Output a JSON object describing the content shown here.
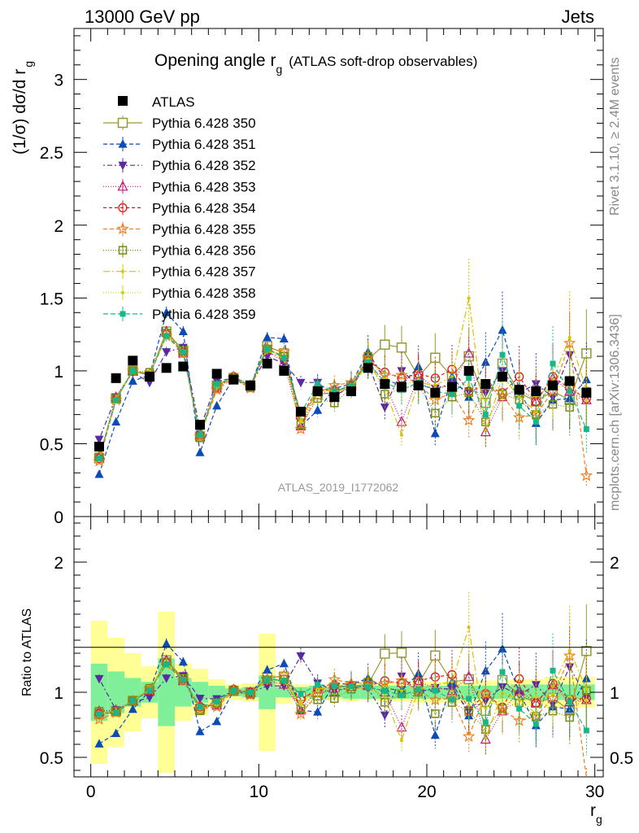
{
  "header": {
    "left": "13000 GeV pp",
    "right": "Jets",
    "side_top": "Rivet 3.1.10, ≥ 2.4M events",
    "side_bottom": "mcplots.cern.ch [arXiv:1306.3436]",
    "watermark": "ATLAS_2019_I1772062"
  },
  "chart_data": [
    {
      "type": "scatter",
      "panel": "main",
      "title_main": "Opening angle r",
      "title_sub": "g",
      "title_rest": "(ATLAS soft-drop observables)",
      "ylabel": "(1/σ) dσ/d r",
      "ylabel_sub": "g",
      "xlim": [
        -1,
        30.5
      ],
      "ylim": [
        0,
        3.35
      ],
      "yticks": [
        0,
        0.5,
        1,
        1.5,
        2,
        2.5,
        3
      ],
      "ytick_labels": [
        "0",
        "0.5",
        "1",
        "1.5",
        "2",
        "2.5",
        "3"
      ],
      "x": [
        0.5,
        1.5,
        2.5,
        3.5,
        4.5,
        5.5,
        6.5,
        7.5,
        8.5,
        9.5,
        10.5,
        11.5,
        12.5,
        13.5,
        14.5,
        15.5,
        16.5,
        17.5,
        18.5,
        19.5,
        20.5,
        21.5,
        22.5,
        23.5,
        24.5,
        25.5,
        26.5,
        27.5,
        28.5,
        29.5
      ],
      "data": {
        "name": "ATLAS",
        "values": [
          0.48,
          0.95,
          1.07,
          0.96,
          1.02,
          1.03,
          0.63,
          0.98,
          0.94,
          0.9,
          1.05,
          1.0,
          0.72,
          0.86,
          0.82,
          0.86,
          1.02,
          0.91,
          0.89,
          0.9,
          0.85,
          0.89,
          1.0,
          0.91,
          0.96,
          0.87,
          0.86,
          0.9,
          0.93,
          0.85
        ]
      },
      "series": [
        {
          "name": "Pythia 6.428 350",
          "color": "#999933",
          "marker": "square-open",
          "dash": "",
          "values": [
            0.4,
            0.81,
            1.0,
            0.97,
            1.27,
            1.14,
            0.55,
            0.9,
            0.95,
            0.9,
            1.17,
            1.12,
            0.7,
            0.84,
            0.85,
            0.9,
            1.08,
            1.18,
            1.16,
            0.96,
            1.09,
            0.96,
            1.1,
            0.78,
            1.05,
            0.85,
            0.79,
            0.86,
            0.8,
            1.12
          ]
        },
        {
          "name": "Pythia 6.428 351",
          "color": "#0b4bb5",
          "marker": "triangle-up",
          "dash": "5,3",
          "values": [
            0.29,
            0.65,
            0.93,
            0.97,
            1.4,
            1.27,
            0.44,
            0.76,
            0.95,
            0.88,
            1.23,
            1.22,
            0.62,
            0.73,
            0.88,
            0.91,
            1.13,
            0.94,
            0.9,
            1.03,
            0.57,
            0.96,
            0.82,
            1.06,
            1.28,
            0.87,
            0.64,
            0.8,
            0.81,
            0.94
          ]
        },
        {
          "name": "Pythia 6.428 352",
          "color": "#5a2aa0",
          "marker": "triangle-down",
          "dash": "2,3,6,3",
          "values": [
            0.53,
            0.82,
            0.99,
            0.92,
            1.13,
            1.16,
            0.6,
            0.93,
            0.95,
            0.9,
            1.1,
            1.05,
            0.92,
            0.92,
            0.83,
            0.89,
            1.05,
            0.75,
            1.0,
            0.9,
            0.88,
            0.91,
            0.86,
            0.85,
            1.0,
            0.85,
            0.91,
            0.82,
            1.11,
            0.82
          ]
        },
        {
          "name": "Pythia 6.428 353",
          "color": "#c0187a",
          "marker": "triangle-open",
          "dash": "1,2",
          "values": [
            0.41,
            0.82,
            1.0,
            0.97,
            1.27,
            1.12,
            0.56,
            0.88,
            0.96,
            0.9,
            1.14,
            1.06,
            0.62,
            0.88,
            0.82,
            0.9,
            1.07,
            0.91,
            0.65,
            0.97,
            0.88,
            0.9,
            1.12,
            0.58,
            0.82,
            0.88,
            0.79,
            0.95,
            0.86,
            0.8
          ]
        },
        {
          "name": "Pythia 6.428 354",
          "color": "#dd1a1a",
          "marker": "circle-open",
          "dash": "4,3",
          "values": [
            0.4,
            0.81,
            1.0,
            0.97,
            1.25,
            1.13,
            0.56,
            0.89,
            0.96,
            0.9,
            1.15,
            1.1,
            0.68,
            0.88,
            0.86,
            0.9,
            1.07,
            0.99,
            0.95,
            0.98,
            0.95,
            1.01,
            0.86,
            0.9,
            0.85,
            0.96,
            0.79,
            0.96,
            0.88,
            0.81
          ]
        },
        {
          "name": "Pythia 6.428 355",
          "color": "#f08020",
          "marker": "star-open",
          "dash": "5,3",
          "values": [
            0.38,
            0.8,
            1.0,
            0.98,
            1.24,
            1.12,
            0.55,
            0.87,
            0.95,
            0.88,
            1.16,
            1.13,
            0.6,
            0.85,
            0.9,
            0.92,
            1.09,
            0.97,
            0.97,
            0.91,
            0.8,
            0.85,
            0.66,
            0.9,
            0.83,
            0.68,
            0.7,
            0.86,
            1.19,
            0.28
          ]
        },
        {
          "name": "Pythia 6.428 356",
          "color": "#7d8a10",
          "marker": "square-open-small",
          "dash": "1,2",
          "values": [
            0.41,
            0.81,
            1.0,
            0.99,
            1.26,
            1.14,
            0.54,
            0.9,
            0.95,
            0.89,
            1.15,
            1.1,
            0.63,
            0.81,
            0.78,
            0.88,
            1.1,
            0.84,
            0.88,
            0.9,
            0.71,
            0.82,
            0.85,
            0.65,
            0.84,
            0.8,
            0.7,
            0.77,
            0.75,
            0.86
          ]
        },
        {
          "name": "Pythia 6.428 357",
          "color": "#d8c400",
          "marker": "dot-small",
          "dash": "8,3,2,3",
          "values": [
            0.4,
            0.81,
            1.0,
            0.98,
            1.25,
            1.13,
            0.56,
            0.9,
            0.95,
            0.9,
            1.14,
            1.08,
            0.66,
            0.88,
            0.86,
            0.88,
            1.06,
            0.88,
            0.56,
            0.92,
            0.9,
            0.96,
            1.5,
            0.59,
            0.96,
            0.82,
            0.72,
            0.94,
            1.23,
            0.87
          ]
        },
        {
          "name": "Pythia 6.428 358",
          "color": "#c8d40e",
          "marker": "dot-small",
          "dash": "1,2",
          "values": [
            0.4,
            0.81,
            1.0,
            0.98,
            1.25,
            1.14,
            0.55,
            0.89,
            0.96,
            0.9,
            1.15,
            1.1,
            0.65,
            0.87,
            0.85,
            0.9,
            1.08,
            0.95,
            0.9,
            0.94,
            0.88,
            0.9,
            0.9,
            0.8,
            0.95,
            0.85,
            0.83,
            0.89,
            0.9,
            0.8
          ]
        },
        {
          "name": "Pythia 6.428 359",
          "color": "#16b88a",
          "marker": "square-small",
          "dash": "6,3",
          "values": [
            0.4,
            0.8,
            1.0,
            0.97,
            1.24,
            1.13,
            0.56,
            0.91,
            0.95,
            0.9,
            1.15,
            1.09,
            0.71,
            0.91,
            0.86,
            0.9,
            1.06,
            0.92,
            0.87,
            0.92,
            0.86,
            0.84,
            0.95,
            0.7,
            1.11,
            0.76,
            0.65,
            1.05,
            0.86,
            0.6
          ]
        }
      ]
    },
    {
      "type": "scatter",
      "panel": "ratio",
      "ylabel": "Ratio to ATLAS",
      "xlabel": "r",
      "xlabel_sub": "g",
      "xlim": [
        -1,
        30.5
      ],
      "ylim": [
        0.35,
        2.35
      ],
      "xticks": [
        0,
        10,
        20,
        30
      ],
      "xtick_labels": [
        "0",
        "10",
        "20",
        "30"
      ],
      "yticks": [
        0.5,
        1,
        2
      ],
      "ytick_labels": [
        "0.5",
        "1",
        "2"
      ],
      "bands": {
        "stat_color": "#7fef9a",
        "total_color": "#ffff96",
        "stat_half_width": [
          0.22,
          0.16,
          0.11,
          0.08,
          0.26,
          0.11,
          0.08,
          0.05,
          0.03,
          0.04,
          0.13,
          0.04,
          0.04,
          0.05,
          0.04,
          0.05,
          0.05,
          0.05,
          0.05,
          0.05,
          0.05,
          0.05,
          0.05,
          0.05,
          0.05,
          0.06,
          0.06,
          0.06,
          0.06,
          0.06
        ],
        "total_half_width": [
          0.55,
          0.42,
          0.3,
          0.2,
          0.62,
          0.22,
          0.18,
          0.1,
          0.06,
          0.07,
          0.45,
          0.09,
          0.06,
          0.06,
          0.06,
          0.07,
          0.06,
          0.07,
          0.07,
          0.08,
          0.08,
          0.08,
          0.08,
          0.09,
          0.09,
          0.1,
          0.1,
          0.12,
          0.12,
          0.12
        ]
      }
    }
  ]
}
